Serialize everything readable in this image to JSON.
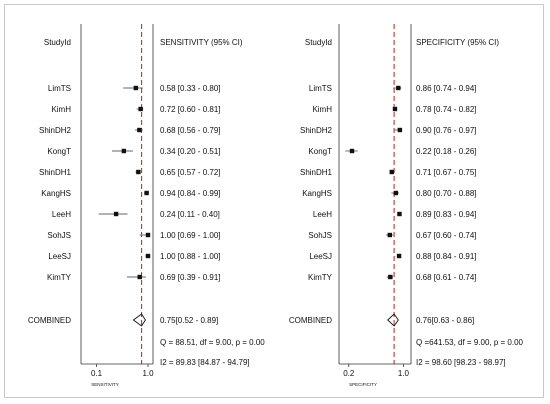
{
  "chart_data": [
    {
      "type": "forest",
      "id_header": "StudyId",
      "metric_header": "SENSITIVITY (95% CI)",
      "xlabel": "SENSITIVITY",
      "xscale": "log",
      "xlim": [
        0.05,
        1.25
      ],
      "xticks": [
        0.1,
        1.0
      ],
      "xtick_labels": [
        "0.1",
        "1.0"
      ],
      "reference_line": 0.75,
      "studies": [
        {
          "name": "LimTS",
          "estimate": 0.58,
          "lower": 0.33,
          "upper": 0.8,
          "label": "0.58 [0.33 - 0.80]"
        },
        {
          "name": "KimH",
          "estimate": 0.72,
          "lower": 0.6,
          "upper": 0.81,
          "label": "0.72 [0.60 - 0.81]"
        },
        {
          "name": "ShinDH2",
          "estimate": 0.68,
          "lower": 0.56,
          "upper": 0.79,
          "label": "0.68 [0.56 - 0.79]"
        },
        {
          "name": "KongT",
          "estimate": 0.34,
          "lower": 0.2,
          "upper": 0.51,
          "label": "0.34 [0.20 - 0.51]"
        },
        {
          "name": "ShinDH1",
          "estimate": 0.65,
          "lower": 0.57,
          "upper": 0.72,
          "label": "0.65 [0.57 - 0.72]"
        },
        {
          "name": "KangHS",
          "estimate": 0.94,
          "lower": 0.84,
          "upper": 0.99,
          "label": "0.94 [0.84 - 0.99]"
        },
        {
          "name": "LeeH",
          "estimate": 0.24,
          "lower": 0.11,
          "upper": 0.4,
          "label": "0.24 [0.11 - 0.40]"
        },
        {
          "name": "SohJS",
          "estimate": 1.0,
          "lower": 0.69,
          "upper": 1.0,
          "label": "1.00 [0.69 - 1.00]"
        },
        {
          "name": "LeeSJ",
          "estimate": 1.0,
          "lower": 0.88,
          "upper": 1.0,
          "label": "1.00 [0.88 - 1.00]"
        },
        {
          "name": "KimTY",
          "estimate": 0.69,
          "lower": 0.39,
          "upper": 0.91,
          "label": "0.69 [0.39 - 0.91]"
        }
      ],
      "combined": {
        "name": "COMBINED",
        "estimate": 0.75,
        "lower": 0.52,
        "upper": 0.89,
        "label": "0.75[0.52 - 0.89]"
      },
      "stats": [
        "Q = 88.51, df = 9.00, p =  0.00",
        "I2 = 89.83 [84.87 - 94.79]"
      ]
    },
    {
      "type": "forest",
      "id_header": "StudyId",
      "metric_header": "SPECIFICITY (95% CI)",
      "xlabel": "SPECIFICITY",
      "xscale": "log",
      "xlim": [
        0.15,
        1.25
      ],
      "xticks": [
        0.2,
        1.0
      ],
      "xtick_labels": [
        "0.2",
        "1.0"
      ],
      "reference_line": 0.76,
      "studies": [
        {
          "name": "LimTS",
          "estimate": 0.86,
          "lower": 0.74,
          "upper": 0.94,
          "label": "0.86 [0.74 - 0.94]"
        },
        {
          "name": "KimH",
          "estimate": 0.78,
          "lower": 0.74,
          "upper": 0.82,
          "label": "0.78 [0.74 - 0.82]"
        },
        {
          "name": "ShinDH2",
          "estimate": 0.9,
          "lower": 0.76,
          "upper": 0.97,
          "label": "0.90 [0.76 - 0.97]"
        },
        {
          "name": "KongT",
          "estimate": 0.22,
          "lower": 0.18,
          "upper": 0.26,
          "label": "0.22 [0.18 - 0.26]"
        },
        {
          "name": "ShinDH1",
          "estimate": 0.71,
          "lower": 0.67,
          "upper": 0.75,
          "label": "0.71 [0.67 - 0.75]"
        },
        {
          "name": "KangHS",
          "estimate": 0.8,
          "lower": 0.7,
          "upper": 0.88,
          "label": "0.80 [0.70 - 0.88]"
        },
        {
          "name": "LeeH",
          "estimate": 0.89,
          "lower": 0.83,
          "upper": 0.94,
          "label": "0.89 [0.83 - 0.94]"
        },
        {
          "name": "SohJS",
          "estimate": 0.67,
          "lower": 0.6,
          "upper": 0.74,
          "label": "0.67 [0.60 - 0.74]"
        },
        {
          "name": "LeeSJ",
          "estimate": 0.88,
          "lower": 0.84,
          "upper": 0.91,
          "label": "0.88 [0.84 - 0.91]"
        },
        {
          "name": "KimTY",
          "estimate": 0.68,
          "lower": 0.61,
          "upper": 0.74,
          "label": "0.68 [0.61 - 0.74]"
        }
      ],
      "combined": {
        "name": "COMBINED",
        "estimate": 0.76,
        "lower": 0.63,
        "upper": 0.86,
        "label": "0.76[0.63 - 0.86]"
      },
      "stats": [
        "Q =641.53, df = 9.00, p =  0.00",
        "I2 = 98.60 [98.23 - 98.97]"
      ]
    }
  ],
  "colors": {
    "reference_line": "#c0392b",
    "ink": "#111111",
    "axis": "#333333",
    "ci_line": "#666666",
    "frame": "#c9c9c9"
  }
}
